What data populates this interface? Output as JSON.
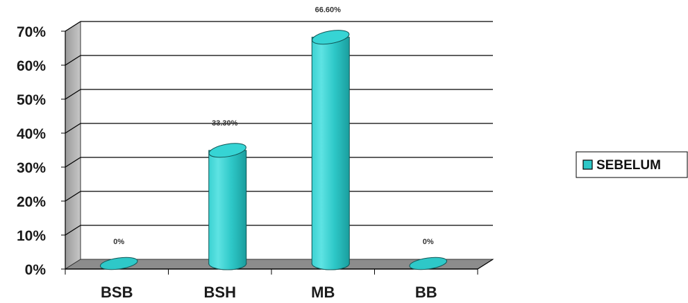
{
  "chart_data": {
    "type": "bar",
    "title": "",
    "xlabel": "",
    "ylabel": "",
    "categories": [
      "BSB",
      "BSH",
      "MB",
      "BB"
    ],
    "series": [
      {
        "name": "SEBELUM",
        "values": [
          0,
          33.3,
          66.6,
          0
        ],
        "color": "#2ec8c8"
      }
    ],
    "data_labels": [
      "0%",
      "33.30%",
      "66.60%",
      "0%"
    ],
    "y_ticks": [
      "0%",
      "10%",
      "20%",
      "30%",
      "40%",
      "50%",
      "60%",
      "70%"
    ],
    "ylim": [
      0,
      70
    ],
    "grid": true,
    "legend_position": "right",
    "style": "3d-cylinder"
  },
  "colors": {
    "bar_fill": "#2ec8c8",
    "bar_top": "#36d4d4",
    "floor": "#8c8c8c",
    "wall": "#d4d4d4",
    "grid": "#000000"
  }
}
